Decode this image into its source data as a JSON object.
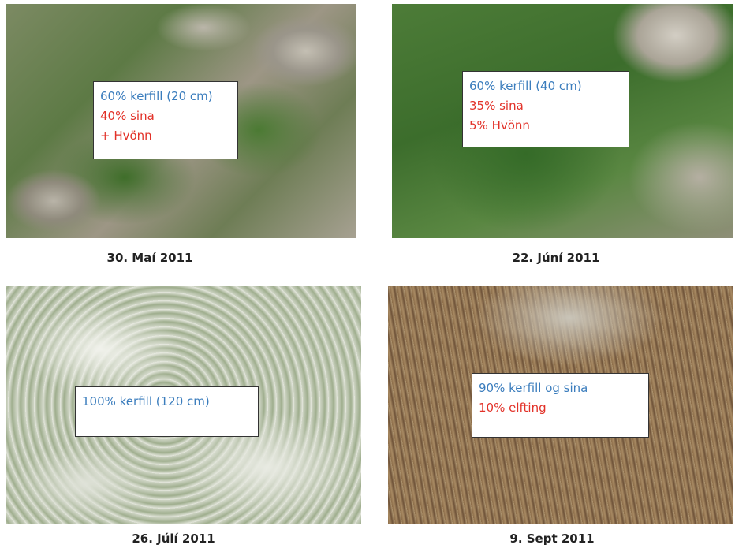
{
  "panels": [
    {
      "caption": "30. Maí 2011",
      "lines": [
        {
          "text": "60% kerfill (20 cm)",
          "color": "#3b7dbd"
        },
        {
          "text": "40% sina",
          "color": "#e23128"
        },
        {
          "text": "+ Hvönn",
          "color": "#e23128"
        }
      ]
    },
    {
      "caption": "22. Júní 2011",
      "lines": [
        {
          "text": "60% kerfill (40 cm)",
          "color": "#3b7dbd"
        },
        {
          "text": "35% sina",
          "color": "#e23128"
        },
        {
          "text": "5% Hvönn",
          "color": "#e23128"
        }
      ]
    },
    {
      "caption": "26. Júlí 2011",
      "lines": [
        {
          "text": "100% kerfill (120 cm)",
          "color": "#3b7dbd"
        }
      ]
    },
    {
      "caption": "9. Sept 2011",
      "lines": [
        {
          "text": "90% kerfill og sina",
          "color": "#3b7dbd"
        },
        {
          "text": "10% elfting",
          "color": "#e23128"
        }
      ]
    }
  ]
}
